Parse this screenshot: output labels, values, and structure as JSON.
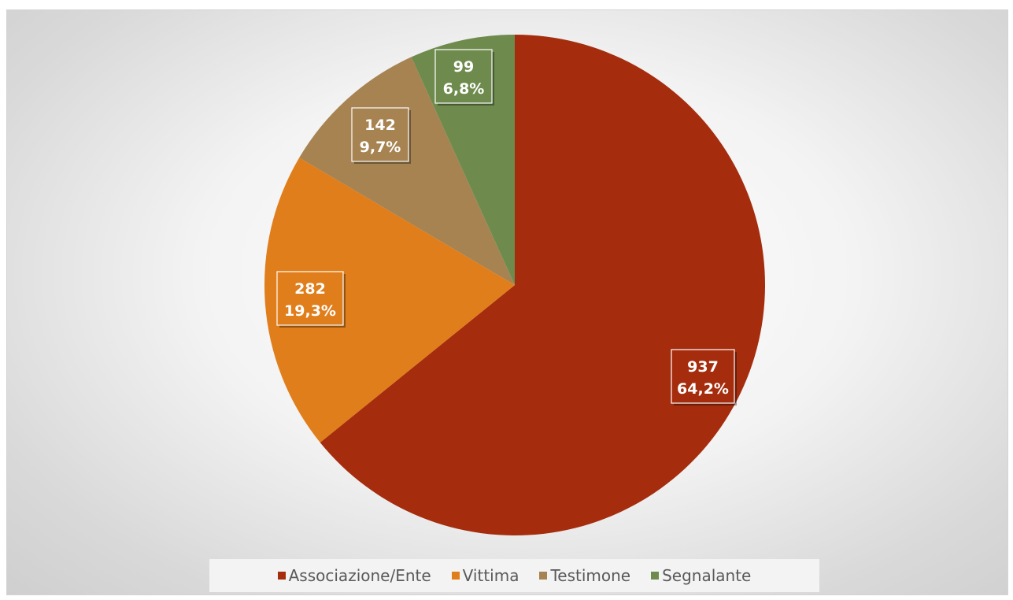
{
  "chart_data": {
    "type": "pie",
    "categories": [
      "Associazione/Ente",
      "Vittima",
      "Testimone",
      "Segnalante"
    ],
    "values": [
      937,
      282,
      142,
      99
    ],
    "percent_labels": [
      "64,2%",
      "19,3%",
      "9,7%",
      "6,8%"
    ],
    "value_labels": [
      "937",
      "282",
      "142",
      "99"
    ],
    "colors": [
      "#A52D0E",
      "#E07E1B",
      "#A68351",
      "#6E8B4D"
    ],
    "start_angle": "12 o'clock",
    "direction": "clockwise",
    "legend_position": "bottom",
    "title": ""
  },
  "legend": {
    "items": [
      {
        "label": "Associazione/Ente",
        "color": "#A52D0E"
      },
      {
        "label": "Vittima",
        "color": "#E07E1B"
      },
      {
        "label": "Testimone",
        "color": "#A68351"
      },
      {
        "label": "Segnalante",
        "color": "#6E8B4D"
      }
    ]
  }
}
